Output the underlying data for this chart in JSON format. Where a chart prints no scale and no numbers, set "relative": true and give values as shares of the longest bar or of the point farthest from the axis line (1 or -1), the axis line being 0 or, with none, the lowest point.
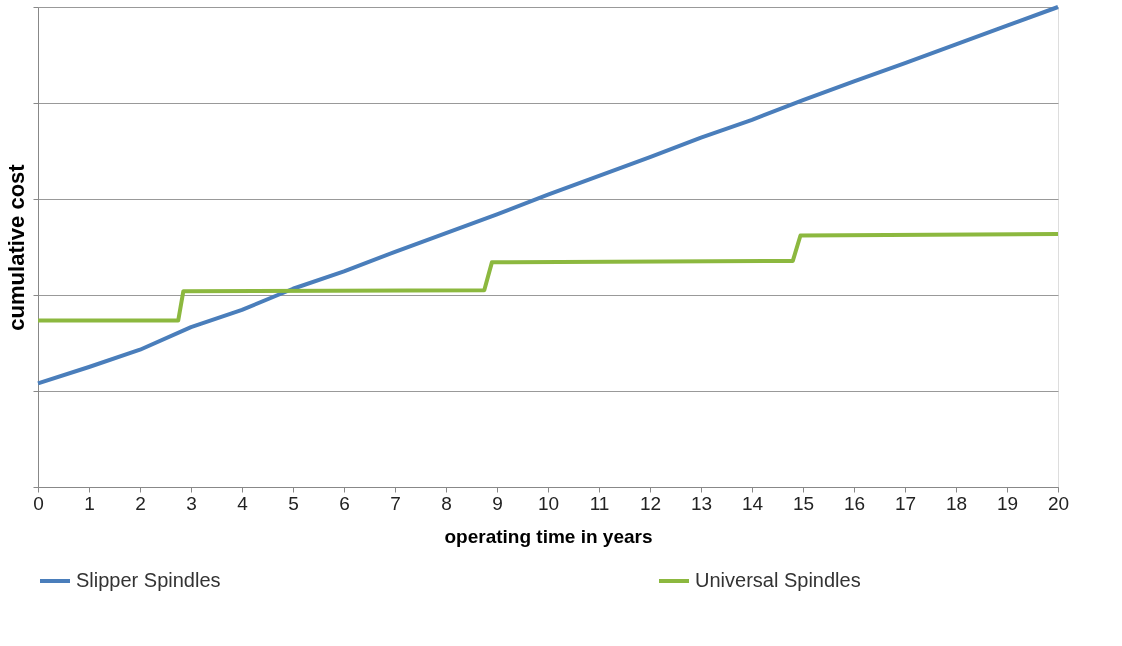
{
  "chart_data": {
    "type": "line",
    "relative": true,
    "xlabel": "operating time in years",
    "ylabel": "cumulative cost",
    "xlim": [
      0,
      20
    ],
    "xticks": [
      0,
      1,
      2,
      3,
      4,
      5,
      6,
      7,
      8,
      9,
      10,
      11,
      12,
      13,
      14,
      15,
      16,
      17,
      18,
      19,
      20
    ],
    "grid": "y",
    "legend": "bottom",
    "marker": "none",
    "line_style": "solid",
    "series": [
      {
        "name": "Slipper Spindles",
        "color": "#4a7ebb",
        "x": [
          0,
          1,
          2,
          3,
          4,
          5,
          6,
          7,
          8,
          9,
          10,
          11,
          12,
          13,
          14,
          15,
          16,
          17,
          18,
          19,
          20
        ],
        "values": [
          0.216,
          0.25,
          0.286,
          0.333,
          0.369,
          0.413,
          0.449,
          0.49,
          0.529,
          0.568,
          0.609,
          0.648,
          0.687,
          0.728,
          0.765,
          0.806,
          0.845,
          0.883,
          0.922,
          0.961,
          1.0
        ]
      },
      {
        "name": "Universal Spindles",
        "color": "#8cb83f",
        "x": [
          0,
          2.75,
          2.85,
          8.75,
          8.9,
          14.8,
          14.95,
          20
        ],
        "values": [
          0.347,
          0.347,
          0.408,
          0.41,
          0.468,
          0.471,
          0.524,
          0.527
        ]
      }
    ]
  }
}
